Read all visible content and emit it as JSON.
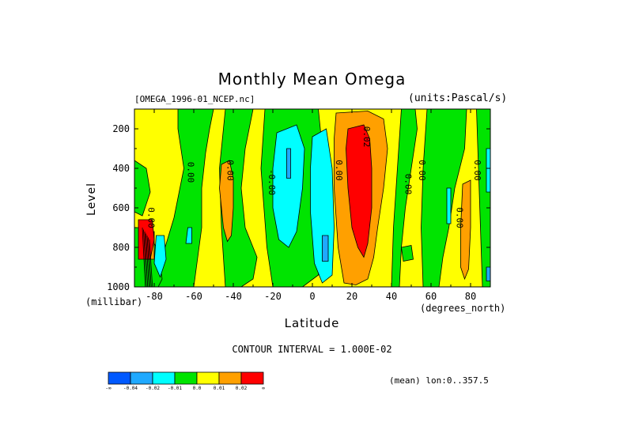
{
  "chart_data": {
    "type": "heatmap",
    "title": "Monthly Mean Omega",
    "subtitle_left": "[OMEGA_1996-01_NCEP.nc]",
    "subtitle_right": "(units:Pascal/s)",
    "xlabel": "Latitude",
    "ylabel": "Level",
    "x_unit": "(degrees_north)",
    "y_unit": "(millibar)",
    "xlim": [
      -90,
      90
    ],
    "ylim": [
      1000,
      100
    ],
    "x_ticks": [
      -80,
      -60,
      -40,
      -20,
      0,
      20,
      40,
      60,
      80
    ],
    "y_ticks": [
      200,
      400,
      600,
      800,
      1000
    ],
    "contour_interval_text": "CONTOUR INTERVAL = 1.000E-02",
    "averaging_text": "(mean) lon:0..357.5",
    "colorbar": {
      "colors": [
        "#0059ff",
        "#1fa9ff",
        "#00ffff",
        "#00e400",
        "#ffff00",
        "#ffa000",
        "#ff0000"
      ],
      "labels": [
        "-∞",
        "-0.04",
        "-0.02",
        "-0.01",
        "0.0",
        "0.01",
        "0.02",
        "∞"
      ]
    },
    "contour_labels": [
      {
        "text": "0.00",
        "lat": -83,
        "lev": 650
      },
      {
        "text": "0.00",
        "lat": -63,
        "lev": 420
      },
      {
        "text": "0.00",
        "lat": -43,
        "lev": 410
      },
      {
        "text": "-0.00",
        "lat": -22,
        "lev": 470
      },
      {
        "text": "0.00",
        "lat": 12,
        "lev": 410
      },
      {
        "text": "0.02",
        "lat": 26,
        "lev": 240
      },
      {
        "text": "0.00",
        "lat": 47,
        "lev": 480
      },
      {
        "text": "0.00",
        "lat": 54,
        "lev": 410
      },
      {
        "text": "0.00",
        "lat": 73,
        "lev": 650
      },
      {
        "text": "0.00",
        "lat": 82,
        "lev": 410
      }
    ],
    "regions": [
      {
        "category": 4,
        "points": [
          [
            -90,
            100
          ],
          [
            90,
            100
          ],
          [
            90,
            1000
          ],
          [
            -90,
            1000
          ]
        ]
      },
      {
        "category": 3,
        "points": [
          [
            -68,
            100
          ],
          [
            -50,
            100
          ],
          [
            -52,
            200
          ],
          [
            -54,
            320
          ],
          [
            -56,
            500
          ],
          [
            -56,
            700
          ],
          [
            -58,
            850
          ],
          [
            -60,
            1000
          ],
          [
            -78,
            1000
          ],
          [
            -76,
            850
          ],
          [
            -70,
            650
          ],
          [
            -65,
            400
          ],
          [
            -68,
            200
          ]
        ]
      },
      {
        "category": 3,
        "points": [
          [
            -44,
            100
          ],
          [
            -30,
            100
          ],
          [
            -34,
            300
          ],
          [
            -36,
            500
          ],
          [
            -34,
            700
          ],
          [
            -28,
            850
          ],
          [
            -30,
            960
          ],
          [
            -36,
            1000
          ],
          [
            -44,
            1000
          ],
          [
            -46,
            700
          ],
          [
            -47,
            400
          ],
          [
            -45,
            200
          ]
        ]
      },
      {
        "category": 3,
        "points": [
          [
            -90,
            360
          ],
          [
            -84,
            400
          ],
          [
            -82,
            520
          ],
          [
            -86,
            640
          ],
          [
            -90,
            620
          ]
        ]
      },
      {
        "category": 3,
        "points": [
          [
            -90,
            700
          ],
          [
            -84,
            700
          ],
          [
            -78,
            820
          ],
          [
            -76,
            960
          ],
          [
            -78,
            1000
          ],
          [
            -90,
            1000
          ]
        ]
      },
      {
        "category": 3,
        "points": [
          [
            -24,
            100
          ],
          [
            3,
            100
          ],
          [
            5,
            300
          ],
          [
            2,
            600
          ],
          [
            4,
            800
          ],
          [
            3,
            940
          ],
          [
            -5,
            1000
          ],
          [
            -20,
            1000
          ],
          [
            -23,
            800
          ],
          [
            -26,
            400
          ]
        ]
      },
      {
        "category": 3,
        "points": [
          [
            45,
            100
          ],
          [
            52,
            100
          ],
          [
            53,
            200
          ],
          [
            50,
            400
          ],
          [
            47,
            600
          ],
          [
            45,
            800
          ],
          [
            44,
            1000
          ],
          [
            40,
            1000
          ],
          [
            41,
            700
          ],
          [
            43,
            400
          ]
        ]
      },
      {
        "category": 3,
        "points": [
          [
            58,
            100
          ],
          [
            78,
            100
          ],
          [
            77,
            300
          ],
          [
            72,
            500
          ],
          [
            69,
            700
          ],
          [
            66,
            850
          ],
          [
            64,
            1000
          ],
          [
            56,
            1000
          ],
          [
            55,
            700
          ],
          [
            56,
            400
          ]
        ]
      },
      {
        "category": 3,
        "points": [
          [
            83,
            100
          ],
          [
            90,
            100
          ],
          [
            90,
            1000
          ],
          [
            86,
            1000
          ],
          [
            85,
            700
          ],
          [
            84,
            400
          ]
        ]
      },
      {
        "category": 3,
        "points": [
          [
            45,
            800
          ],
          [
            50,
            790
          ],
          [
            51,
            860
          ],
          [
            46,
            870
          ]
        ]
      },
      {
        "category": 2,
        "points": [
          [
            -18,
            220
          ],
          [
            -8,
            180
          ],
          [
            -4,
            300
          ],
          [
            -5,
            500
          ],
          [
            -8,
            720
          ],
          [
            -12,
            800
          ],
          [
            -17,
            760
          ],
          [
            -20,
            600
          ],
          [
            -20,
            400
          ]
        ]
      },
      {
        "category": 2,
        "points": [
          [
            0,
            240
          ],
          [
            7,
            200
          ],
          [
            10,
            400
          ],
          [
            11,
            700
          ],
          [
            10,
            940
          ],
          [
            5,
            980
          ],
          [
            1,
            880
          ],
          [
            -1,
            620
          ],
          [
            -1,
            400
          ]
        ]
      },
      {
        "category": 2,
        "points": [
          [
            -79,
            740
          ],
          [
            -75,
            740
          ],
          [
            -74,
            860
          ],
          [
            -77,
            950
          ],
          [
            -80,
            880
          ]
        ]
      },
      {
        "category": 2,
        "points": [
          [
            -63,
            700
          ],
          [
            -61,
            700
          ],
          [
            -61,
            780
          ],
          [
            -64,
            780
          ]
        ]
      },
      {
        "category": 2,
        "points": [
          [
            68,
            500
          ],
          [
            70,
            500
          ],
          [
            70,
            680
          ],
          [
            68,
            680
          ]
        ]
      },
      {
        "category": 2,
        "points": [
          [
            88,
            300
          ],
          [
            90,
            300
          ],
          [
            90,
            520
          ],
          [
            88,
            520
          ]
        ]
      },
      {
        "category": 1,
        "points": [
          [
            -13,
            300
          ],
          [
            -11,
            300
          ],
          [
            -11,
            450
          ],
          [
            -13,
            450
          ]
        ]
      },
      {
        "category": 1,
        "points": [
          [
            5,
            740
          ],
          [
            8,
            740
          ],
          [
            8,
            870
          ],
          [
            5,
            870
          ]
        ]
      },
      {
        "category": 1,
        "points": [
          [
            88,
            900
          ],
          [
            90,
            900
          ],
          [
            90,
            970
          ],
          [
            88,
            970
          ]
        ]
      },
      {
        "category": 5,
        "points": [
          [
            12,
            120
          ],
          [
            28,
            110
          ],
          [
            36,
            150
          ],
          [
            38,
            300
          ],
          [
            36,
            500
          ],
          [
            33,
            700
          ],
          [
            31,
            850
          ],
          [
            28,
            960
          ],
          [
            22,
            990
          ],
          [
            16,
            980
          ],
          [
            13,
            800
          ],
          [
            11,
            500
          ],
          [
            11,
            250
          ]
        ]
      },
      {
        "category": 5,
        "points": [
          [
            -46,
            380
          ],
          [
            -42,
            360
          ],
          [
            -40,
            450
          ],
          [
            -40,
            600
          ],
          [
            -41,
            740
          ],
          [
            -43,
            770
          ],
          [
            -45,
            700
          ],
          [
            -47,
            500
          ]
        ]
      },
      {
        "category": 5,
        "points": [
          [
            76,
            480
          ],
          [
            80,
            460
          ],
          [
            80,
            700
          ],
          [
            79,
            910
          ],
          [
            77,
            960
          ],
          [
            75,
            900
          ],
          [
            75,
            700
          ]
        ]
      },
      {
        "category": 5,
        "points": [
          [
            -84,
            720
          ],
          [
            -80,
            720
          ],
          [
            -80,
            860
          ],
          [
            -84,
            860
          ]
        ]
      },
      {
        "category": 6,
        "points": [
          [
            18,
            200
          ],
          [
            26,
            180
          ],
          [
            29,
            250
          ],
          [
            30,
            400
          ],
          [
            30,
            600
          ],
          [
            28,
            780
          ],
          [
            26,
            850
          ],
          [
            23,
            800
          ],
          [
            20,
            700
          ],
          [
            18,
            500
          ],
          [
            17,
            300
          ]
        ]
      },
      {
        "category": 6,
        "points": [
          [
            -88,
            660
          ],
          [
            -81,
            660
          ],
          [
            -80,
            760
          ],
          [
            -82,
            860
          ],
          [
            -88,
            860
          ]
        ]
      }
    ]
  }
}
